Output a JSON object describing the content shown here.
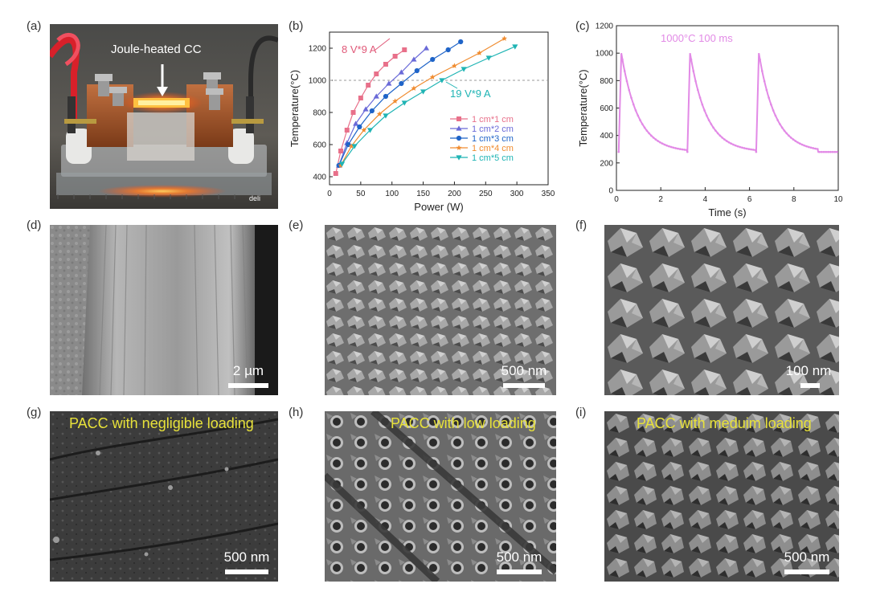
{
  "panels": {
    "a": {
      "letter": "(a)",
      "annotation": "Joule-heated CC",
      "ruler_text": "deli"
    },
    "b": {
      "letter": "(b)"
    },
    "c": {
      "letter": "(c)"
    },
    "d": {
      "letter": "(d)",
      "scale": "2 µm"
    },
    "e": {
      "letter": "(e)",
      "scale": "500 nm"
    },
    "f": {
      "letter": "(f)",
      "scale": "100 nm"
    },
    "g": {
      "letter": "(g)",
      "caption": "PACC with negligible loading",
      "scale": "500 nm"
    },
    "h": {
      "letter": "(h)",
      "caption": "PACC with low loading",
      "scale": "500 nm"
    },
    "i": {
      "letter": "(i)",
      "caption": "PACC with meduim loading",
      "scale": "500 nm"
    }
  },
  "chart_data": [
    {
      "panel": "b",
      "type": "line",
      "xlabel": "Power (W)",
      "ylabel": "Temperature(°C)",
      "xlim": [
        0,
        350
      ],
      "ylim": [
        350,
        1300
      ],
      "xticks": [
        0,
        50,
        100,
        150,
        200,
        250,
        300,
        350
      ],
      "yticks": [
        400,
        600,
        800,
        1000,
        1200
      ],
      "reference_line": 1000,
      "annotations": [
        "8 V*9 A",
        "19 V*9 A"
      ],
      "legend_position": "lower-right",
      "series": [
        {
          "name": "1 cm*1 cm",
          "marker": "square",
          "color": "#e8708a",
          "x": [
            10,
            18,
            28,
            38,
            50,
            62,
            75,
            90,
            105,
            120
          ],
          "y": [
            420,
            560,
            690,
            800,
            890,
            970,
            1040,
            1100,
            1150,
            1190
          ]
        },
        {
          "name": "1 cm*2 cm",
          "marker": "triangle-up",
          "color": "#6a6ad8",
          "x": [
            15,
            28,
            42,
            58,
            75,
            95,
            115,
            135,
            155
          ],
          "y": [
            470,
            610,
            730,
            820,
            900,
            980,
            1050,
            1130,
            1200
          ]
        },
        {
          "name": "1 cm*3 cm",
          "marker": "circle",
          "color": "#1f64c8",
          "x": [
            15,
            30,
            48,
            68,
            90,
            115,
            140,
            165,
            190,
            210
          ],
          "y": [
            470,
            600,
            710,
            810,
            900,
            980,
            1060,
            1130,
            1190,
            1240
          ]
        },
        {
          "name": "1 cm*4 cm",
          "marker": "star",
          "color": "#f08c30",
          "x": [
            18,
            35,
            55,
            80,
            105,
            135,
            165,
            200,
            240,
            280
          ],
          "y": [
            470,
            590,
            690,
            790,
            870,
            950,
            1020,
            1090,
            1170,
            1260
          ]
        },
        {
          "name": "1 cm*5 cm",
          "marker": "triangle-down",
          "color": "#1fb4b4",
          "x": [
            20,
            40,
            65,
            90,
            120,
            150,
            180,
            215,
            255,
            297
          ],
          "y": [
            480,
            590,
            690,
            780,
            860,
            930,
            1000,
            1070,
            1140,
            1210
          ]
        }
      ]
    },
    {
      "panel": "c",
      "type": "line",
      "xlabel": "Time (s)",
      "ylabel": "Temperature(°C)",
      "xlim": [
        0,
        10
      ],
      "ylim": [
        0,
        1200
      ],
      "xticks": [
        0,
        2,
        4,
        6,
        8,
        10
      ],
      "yticks": [
        0,
        200,
        400,
        600,
        800,
        1000,
        1200
      ],
      "annotation": "1000°C  100 ms",
      "color": "#e28ae6",
      "pulses": [
        0.1,
        3.2,
        6.3
      ],
      "peak": 1000,
      "base": 280,
      "pulse_end": 9.1
    }
  ],
  "colors": {
    "sem_caption": "#e8e23a",
    "scale_text": "#ffffff"
  }
}
